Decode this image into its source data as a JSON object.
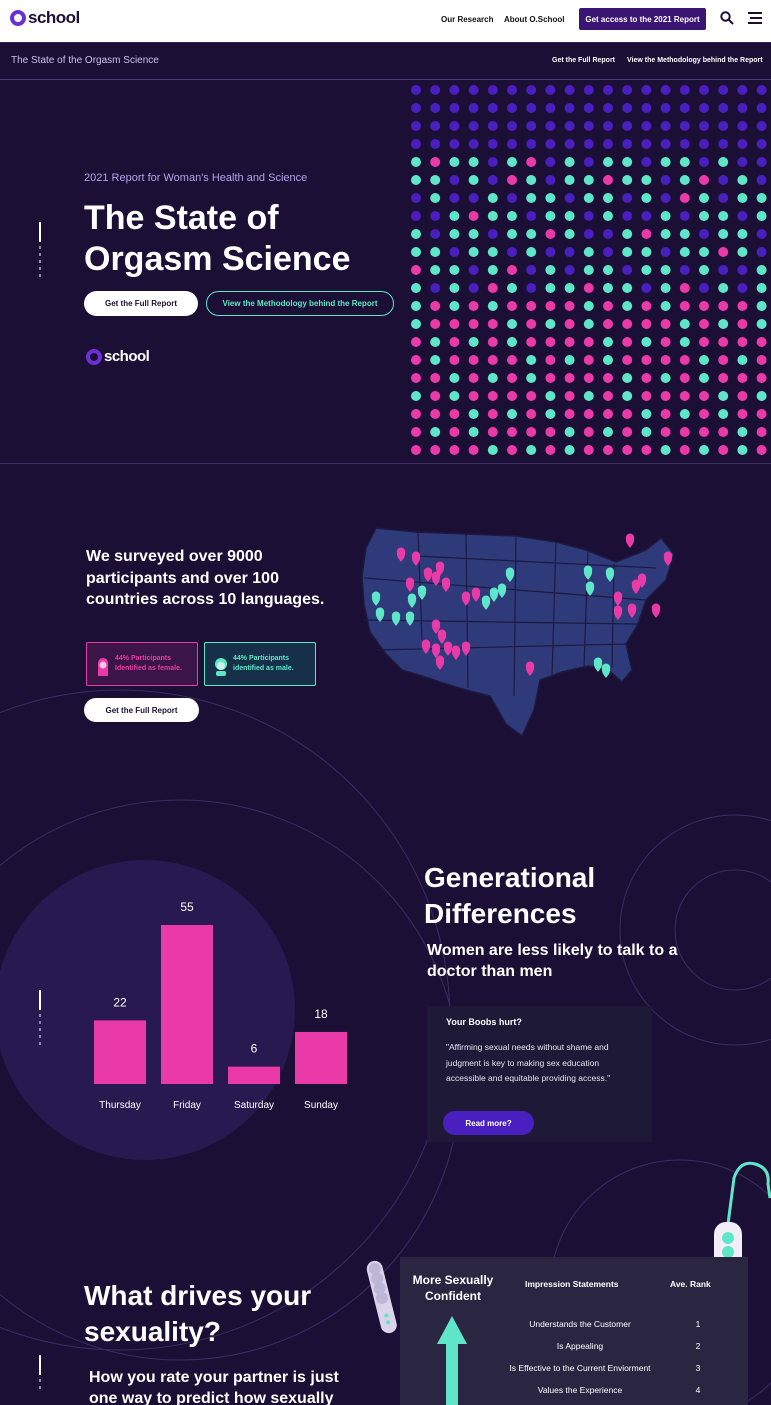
{
  "nav": {
    "logo": "school",
    "links": [
      "Our Research",
      "About O.School"
    ],
    "cta": "Get access to the 2021 Report",
    "search_icon": "search-icon",
    "menu_icon": "hamburger-menu-icon"
  },
  "subbar": {
    "title": "The State of the Orgasm Science",
    "links": [
      "Get the Full Report",
      "View the Methodology behind the Report"
    ]
  },
  "hero": {
    "kicker": "2021 Report for Woman's Health and Science",
    "title": "The State of Orgasm Science",
    "primary_button": "Get the Full Report",
    "secondary_button": "View the Methodology behind the Report",
    "logo": "school",
    "colors": {
      "violet": "#4a1fbf",
      "teal": "#5fe6c8",
      "pink": "#e93aa7"
    }
  },
  "survey": {
    "text": "We surveyed over 9000 participants and over 100 countries across 10 languages.",
    "female_stat": "44% Participants Identified as female.",
    "male_stat": "44% Participants identified as male.",
    "button": "Get the Full Report"
  },
  "chart_data": {
    "type": "bar",
    "categories": [
      "Thursday",
      "Friday",
      "Saturday",
      "Sunday"
    ],
    "values": [
      22,
      55,
      6,
      18
    ],
    "title": "",
    "xlabel": "",
    "ylabel": "",
    "color": "#e93aa7"
  },
  "generational": {
    "title": "Generational Differences",
    "subtitle": "Women are less likely to talk to a doctor than men",
    "card_title": "Your Boobs hurt?",
    "card_body": "\"Affirming sexual needs without shame and judgment is key to making sex education accessible and equitable providing access.\"",
    "card_button": "Read more?"
  },
  "sexuality": {
    "title": "What drives your sexuality?",
    "subtitle": "How you rate your partner is just one way to predict how sexually",
    "table": {
      "side_label": "More Sexually Confident",
      "col1": "Impression Statements",
      "col2": "Ave. Rank",
      "rows": [
        {
          "statement": "Understands the Customer",
          "rank": "1"
        },
        {
          "statement": "Is Appealing",
          "rank": "2"
        },
        {
          "statement": "Is Effective to the Current Enviorment",
          "rank": "3"
        },
        {
          "statement": "Values the Experience",
          "rank": "4"
        }
      ]
    }
  }
}
